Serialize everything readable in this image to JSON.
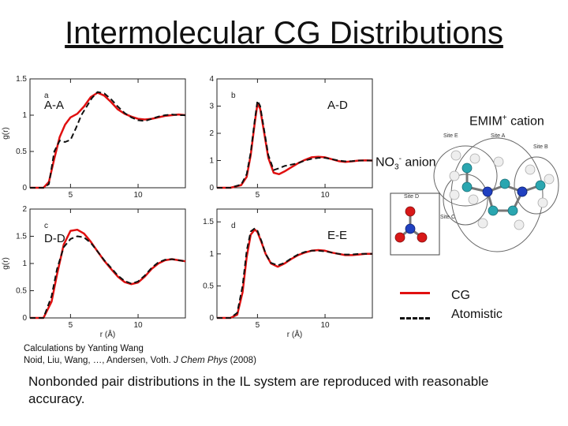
{
  "slide": {
    "title": "Intermolecular CG Distributions",
    "cation_label": "EMIM",
    "cation_superscript": "+",
    "cation_suffix": " cation",
    "anion_label": "NO",
    "anion_subscript": "3",
    "anion_superscript": "-",
    "anion_suffix": " anion",
    "site_labels": [
      "Site E",
      "Site A",
      "Site B",
      "Site C",
      "Site D"
    ],
    "legend": [
      {
        "label": "CG",
        "color": "#e01010",
        "style": "solid"
      },
      {
        "label": "Atomistic",
        "color": "#111111",
        "style": "dashed"
      }
    ],
    "credit_line1": "Calculations by Yanting Wang",
    "credit_line2_prefix": "Noid, Liu, Wang, …, Andersen, Voth.  ",
    "credit_journal": "J Chem Phys",
    "credit_year": " (2008)",
    "summary": "Nonbonded pair distributions in the IL system are reproduced with reasonable accuracy."
  },
  "chart_data": [
    {
      "type": "line",
      "panel_letter": "a",
      "pair": "A-A",
      "ylabel": "g(r)",
      "xlabel": "",
      "xlim": [
        2,
        13.5
      ],
      "ylim": [
        0,
        1.5
      ],
      "xticks": [
        5,
        10
      ],
      "yticks": [
        0,
        0.5,
        1,
        1.5
      ],
      "ytick_labels": [
        "0",
        "0.5",
        "1",
        "1.5"
      ],
      "series": [
        {
          "style": "solid",
          "color": "#e01010",
          "x": [
            2,
            3.0,
            3.4,
            3.8,
            4.2,
            4.6,
            5.0,
            5.5,
            6.0,
            6.5,
            7.0,
            7.5,
            8.0,
            8.5,
            9.0,
            9.5,
            10.0,
            10.5,
            11.0,
            11.5,
            12.0,
            12.5,
            13.0,
            13.5
          ],
          "y": [
            0,
            0,
            0.08,
            0.4,
            0.7,
            0.87,
            0.97,
            1.02,
            1.12,
            1.25,
            1.31,
            1.27,
            1.18,
            1.08,
            1.02,
            0.98,
            0.95,
            0.94,
            0.95,
            0.97,
            0.99,
            1.0,
            1.01,
            1.0
          ]
        },
        {
          "style": "dashed",
          "color": "#111111",
          "x": [
            2,
            3.0,
            3.4,
            3.8,
            4.2,
            4.6,
            5.0,
            5.4,
            5.8,
            6.2,
            6.6,
            7.0,
            7.5,
            8.0,
            8.5,
            9.0,
            9.5,
            10.0,
            10.5,
            11.0,
            11.5,
            12.0,
            12.5,
            13.0,
            13.5
          ],
          "y": [
            0,
            0,
            0.05,
            0.5,
            0.65,
            0.63,
            0.66,
            0.82,
            1.0,
            1.12,
            1.24,
            1.32,
            1.3,
            1.22,
            1.12,
            1.03,
            0.97,
            0.93,
            0.92,
            0.95,
            0.98,
            1.0,
            1.01,
            1.0,
            1.0
          ]
        }
      ]
    },
    {
      "type": "line",
      "panel_letter": "b",
      "pair": "A-D",
      "ylabel": "",
      "xlabel": "",
      "xlim": [
        2,
        13.5
      ],
      "ylim": [
        0,
        4
      ],
      "xticks": [
        5,
        10
      ],
      "yticks": [
        0,
        1,
        2,
        3,
        4
      ],
      "ytick_labels": [
        "0",
        "1",
        "2",
        "3",
        "4"
      ],
      "series": [
        {
          "style": "solid",
          "color": "#e01010",
          "x": [
            2,
            3.0,
            3.8,
            4.2,
            4.5,
            4.8,
            5.0,
            5.2,
            5.5,
            5.8,
            6.2,
            6.6,
            7.0,
            7.5,
            8.0,
            8.5,
            9.0,
            9.5,
            10.0,
            10.5,
            11.0,
            11.5,
            12.0,
            12.5,
            13.0,
            13.5
          ],
          "y": [
            0,
            0,
            0.1,
            0.4,
            1.2,
            2.4,
            3.1,
            2.9,
            2.0,
            1.1,
            0.55,
            0.5,
            0.6,
            0.75,
            0.9,
            1.02,
            1.12,
            1.14,
            1.12,
            1.05,
            0.98,
            0.95,
            0.97,
            1.0,
            1.01,
            1.0
          ]
        },
        {
          "style": "dashed",
          "color": "#111111",
          "x": [
            2,
            3.0,
            3.8,
            4.2,
            4.5,
            4.8,
            5.0,
            5.2,
            5.5,
            5.8,
            6.2,
            6.6,
            7.0,
            7.5,
            8.0,
            8.5,
            9.0,
            9.5,
            10.0,
            10.5,
            11.0,
            11.5,
            12.0,
            12.5,
            13.0,
            13.5
          ],
          "y": [
            0,
            0,
            0.12,
            0.5,
            1.3,
            2.5,
            3.2,
            3.0,
            2.1,
            1.2,
            0.65,
            0.72,
            0.8,
            0.85,
            0.9,
            1.0,
            1.06,
            1.1,
            1.1,
            1.05,
            1.0,
            0.97,
            0.98,
            1.0,
            1.0,
            1.0
          ]
        }
      ]
    },
    {
      "type": "line",
      "panel_letter": "c",
      "pair": "D-D",
      "ylabel": "g(r)",
      "xlabel": "r (Å)",
      "xlim": [
        2,
        13.5
      ],
      "ylim": [
        0,
        2
      ],
      "xticks": [
        5,
        10
      ],
      "yticks": [
        0,
        0.5,
        1,
        1.5,
        2
      ],
      "ytick_labels": [
        "0",
        "0.5",
        "1",
        "1.5",
        "2"
      ],
      "series": [
        {
          "style": "solid",
          "color": "#e01010",
          "x": [
            2,
            3.0,
            3.6,
            4.0,
            4.5,
            5.0,
            5.5,
            6.0,
            6.5,
            7.0,
            7.5,
            8.0,
            8.5,
            9.0,
            9.5,
            10.0,
            10.5,
            11.0,
            11.5,
            12.0,
            12.5,
            13.0,
            13.5
          ],
          "y": [
            0,
            0,
            0.3,
            0.8,
            1.35,
            1.6,
            1.62,
            1.55,
            1.4,
            1.22,
            1.05,
            0.9,
            0.76,
            0.66,
            0.62,
            0.65,
            0.76,
            0.9,
            1.0,
            1.06,
            1.08,
            1.06,
            1.04
          ]
        },
        {
          "style": "dashed",
          "color": "#111111",
          "x": [
            2,
            3.0,
            3.6,
            4.0,
            4.5,
            5.0,
            5.5,
            6.0,
            6.5,
            7.0,
            7.5,
            8.0,
            8.5,
            9.0,
            9.5,
            10.0,
            10.5,
            11.0,
            11.5,
            12.0,
            12.5,
            13.0,
            13.5
          ],
          "y": [
            0,
            0,
            0.4,
            0.9,
            1.3,
            1.45,
            1.5,
            1.48,
            1.38,
            1.22,
            1.06,
            0.92,
            0.78,
            0.68,
            0.63,
            0.67,
            0.78,
            0.92,
            1.02,
            1.07,
            1.08,
            1.06,
            1.04
          ]
        }
      ]
    },
    {
      "type": "line",
      "panel_letter": "d",
      "pair": "E-E",
      "ylabel": "",
      "xlabel": "r (Å)",
      "xlim": [
        2,
        13.5
      ],
      "ylim": [
        0,
        1.7
      ],
      "xticks": [
        5,
        10
      ],
      "yticks": [
        0,
        0.5,
        1,
        1.5
      ],
      "ytick_labels": [
        "0",
        "0.5",
        "1",
        "1.5"
      ],
      "series": [
        {
          "style": "solid",
          "color": "#e01010",
          "x": [
            2,
            3.0,
            3.5,
            3.9,
            4.2,
            4.5,
            4.8,
            5.0,
            5.3,
            5.6,
            6.0,
            6.5,
            7.0,
            7.5,
            8.0,
            8.5,
            9.0,
            9.5,
            10.0,
            10.5,
            11.0,
            11.5,
            12.0,
            12.5,
            13.0,
            13.5
          ],
          "y": [
            0,
            0,
            0.05,
            0.4,
            0.95,
            1.3,
            1.38,
            1.34,
            1.18,
            1.0,
            0.85,
            0.8,
            0.85,
            0.92,
            0.98,
            1.02,
            1.05,
            1.06,
            1.05,
            1.02,
            1.0,
            0.98,
            0.98,
            0.99,
            1.0,
            1.0
          ]
        },
        {
          "style": "dashed",
          "color": "#111111",
          "x": [
            2,
            3.0,
            3.5,
            3.9,
            4.2,
            4.5,
            4.8,
            5.0,
            5.3,
            5.6,
            6.0,
            6.5,
            7.0,
            7.5,
            8.0,
            8.5,
            9.0,
            9.5,
            10.0,
            10.5,
            11.0,
            11.5,
            12.0,
            12.5,
            13.0,
            13.5
          ],
          "y": [
            0,
            0,
            0.08,
            0.5,
            1.05,
            1.35,
            1.4,
            1.36,
            1.2,
            1.0,
            0.86,
            0.82,
            0.86,
            0.93,
            0.99,
            1.03,
            1.05,
            1.05,
            1.04,
            1.02,
            1.0,
            0.99,
            0.99,
            1.0,
            1.0,
            1.0
          ]
        }
      ]
    }
  ]
}
